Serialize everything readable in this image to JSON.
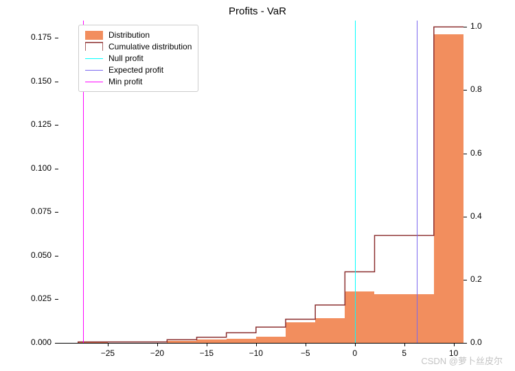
{
  "chart": {
    "type": "histogram",
    "title": "Profits - VaR",
    "title_fontsize": 15,
    "background_color": "#ffffff",
    "watermark": "CSDN @萝卜丝皮尔",
    "left_axis": {
      "min": 0.0,
      "max": 0.185,
      "ticks": [
        0.0,
        0.025,
        0.05,
        0.075,
        0.1,
        0.125,
        0.15,
        0.175
      ],
      "tick_labels": [
        "0.000",
        "0.025",
        "0.050",
        "0.075",
        "0.100",
        "0.125",
        "0.150",
        "0.175"
      ],
      "label_fontsize": 12
    },
    "right_axis": {
      "min": 0.0,
      "max": 1.02,
      "ticks": [
        0.0,
        0.2,
        0.4,
        0.6,
        0.8,
        1.0
      ],
      "tick_labels": [
        "0.0",
        "0.2",
        "0.4",
        "0.6",
        "0.8",
        "1.0"
      ],
      "label_fontsize": 12
    },
    "x_axis": {
      "min": -30,
      "max": 11,
      "ticks": [
        -25,
        -20,
        -15,
        -10,
        -5,
        0,
        5,
        10
      ],
      "tick_labels": [
        "−25",
        "−20",
        "−15",
        "−10",
        "−5",
        "0",
        "5",
        "10"
      ],
      "label_fontsize": 12
    },
    "histogram": {
      "bin_width": 3,
      "bins_start": [
        -28,
        -25,
        -22,
        -19,
        -16,
        -13,
        -10,
        -7,
        -4,
        -1,
        2,
        5,
        8
      ],
      "heights": [
        0.0005,
        0.0,
        0.0,
        0.0012,
        0.0018,
        0.0025,
        0.0035,
        0.012,
        0.014,
        0.0295,
        0.028,
        0.028,
        0.177
      ],
      "fill_color": "#f28e5e",
      "fill_opacity": 1.0,
      "edge_color": "none"
    },
    "cumulative": {
      "bins_start": [
        -28,
        -25,
        -22,
        -19,
        -16,
        -13,
        -10,
        -7,
        -4,
        -1,
        2,
        5,
        8,
        11
      ],
      "values": [
        0.003,
        0.003,
        0.003,
        0.01,
        0.018,
        0.032,
        0.05,
        0.075,
        0.12,
        0.225,
        0.34,
        0.34,
        1.0,
        1.0
      ],
      "line_color": "#8b2e2e",
      "line_width": 1.5
    },
    "vlines": {
      "null_profit": {
        "x": 0,
        "color": "#00ffff",
        "width": 1.5
      },
      "expected_profit": {
        "x": 6.3,
        "color": "#7b68ee",
        "width": 1.5
      },
      "min_profit": {
        "x": -27.5,
        "color": "#ff00ff",
        "width": 1.5
      }
    },
    "legend": {
      "items": [
        {
          "type": "fill",
          "label": "Distribution",
          "color": "#f28e5e"
        },
        {
          "type": "step",
          "label": "Cumulative distribution",
          "color": "#8b2e2e"
        },
        {
          "type": "line",
          "label": "Null profit",
          "color": "#00ffff"
        },
        {
          "type": "line",
          "label": "Expected profit",
          "color": "#7b68ee"
        },
        {
          "type": "line",
          "label": "Min profit",
          "color": "#ff00ff"
        }
      ],
      "fontsize": 12,
      "border_color": "#cccccc"
    }
  }
}
